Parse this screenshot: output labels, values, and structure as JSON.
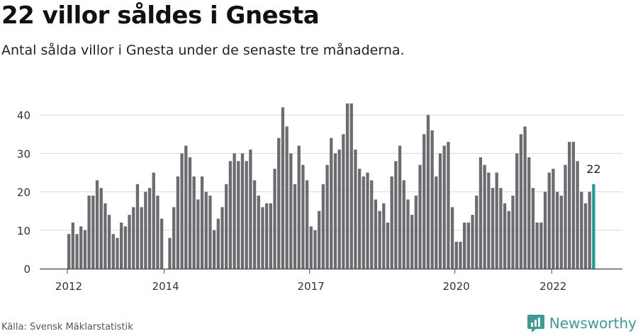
{
  "header": {
    "title": "22 villor såldes i Gnesta",
    "subtitle": "Antal sålda villor i Gnesta under de senaste tre månaderna."
  },
  "footer": {
    "source": "Källa: Svensk Mäklarstatistik",
    "brand": "Newsworthy",
    "brand_icon": "newsworthy-logo-icon",
    "brand_color": "#3a9d91"
  },
  "chart_data": {
    "type": "bar",
    "x_start": "2012-01",
    "x_end": "2022-11",
    "values": [
      9,
      12,
      9,
      11,
      10,
      19,
      19,
      23,
      21,
      17,
      14,
      9,
      8,
      12,
      11,
      14,
      16,
      22,
      16,
      20,
      21,
      25,
      19,
      13,
      0,
      8,
      16,
      24,
      30,
      32,
      29,
      24,
      18,
      24,
      20,
      19,
      10,
      13,
      16,
      22,
      28,
      30,
      28,
      30,
      28,
      31,
      23,
      19,
      16,
      17,
      17,
      26,
      34,
      42,
      37,
      30,
      22,
      32,
      27,
      23,
      11,
      10,
      15,
      22,
      27,
      34,
      30,
      31,
      35,
      43,
      43,
      31,
      26,
      24,
      25,
      23,
      18,
      15,
      17,
      12,
      24,
      28,
      32,
      23,
      18,
      14,
      19,
      27,
      35,
      40,
      36,
      24,
      30,
      32,
      33,
      16,
      7,
      7,
      12,
      12,
      14,
      19,
      29,
      27,
      25,
      21,
      25,
      21,
      17,
      15,
      19,
      30,
      35,
      37,
      29,
      21,
      12,
      12,
      20,
      25,
      26,
      20,
      19,
      27,
      33,
      33,
      28,
      20,
      17,
      20,
      22
    ],
    "highlight_last": true,
    "highlight_label": "22",
    "bar_color": "#6b6b70",
    "highlight_color": "#1b9e96",
    "y_ticks": [
      0,
      10,
      20,
      30,
      40
    ],
    "ylim": [
      0,
      44
    ],
    "x_ticks": [
      {
        "label": "2012",
        "month_index": 0
      },
      {
        "label": "2014",
        "month_index": 24
      },
      {
        "label": "2017",
        "month_index": 60
      },
      {
        "label": "2020",
        "month_index": 96
      },
      {
        "label": "2022",
        "month_index": 120
      }
    ],
    "grid": true,
    "xlabel": "",
    "ylabel": ""
  }
}
